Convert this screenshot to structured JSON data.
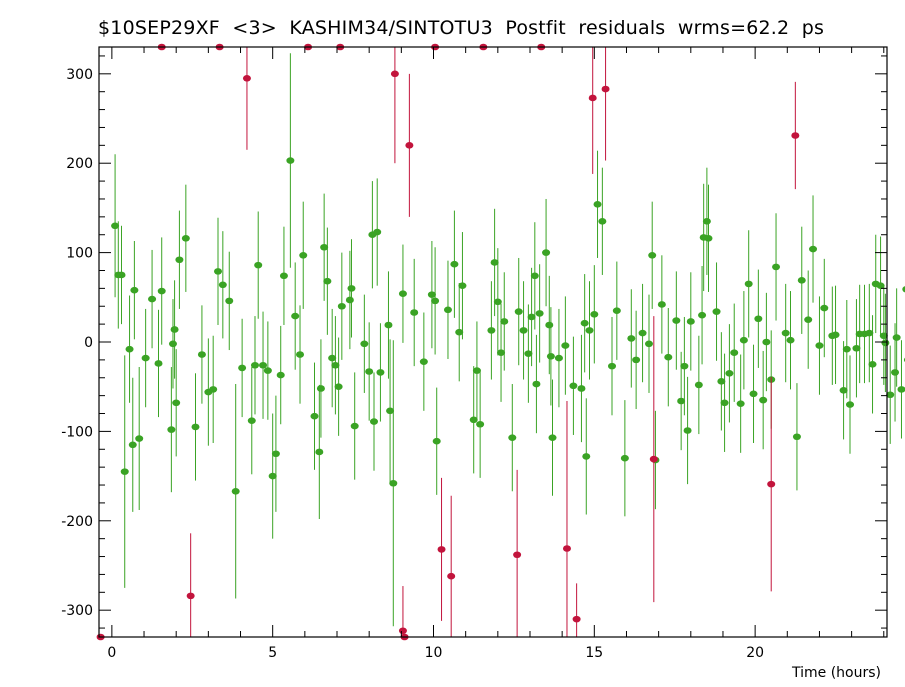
{
  "chart_data": {
    "type": "scatter",
    "title": "$10SEP29XF  <3>  KASHIM34/SINTOTU3  Postfit  residuals  wrms=62.2  ps",
    "xlabel": "Time (hours)",
    "ylabel": "",
    "xlim": [
      -0.4,
      24.1
    ],
    "ylim": [
      -330,
      330
    ],
    "xticks": [
      0,
      5,
      10,
      15,
      20
    ],
    "yticks": [
      -300,
      -200,
      -100,
      0,
      100,
      200,
      300
    ],
    "grid": false,
    "legend": "none",
    "colors": {
      "good": "#3aa324",
      "outlier": "#c2143c"
    },
    "series": [
      {
        "name": "",
        "color": "#3aa324",
        "points": [
          [
            0.1,
            130,
            80
          ],
          [
            0.2,
            75,
            60
          ],
          [
            0.3,
            75,
            55
          ],
          [
            0.4,
            -145,
            130
          ],
          [
            0.55,
            -8,
            60
          ],
          [
            0.65,
            -115,
            75
          ],
          [
            0.7,
            58,
            55
          ],
          [
            0.85,
            -108,
            80
          ],
          [
            1.05,
            -18,
            55
          ],
          [
            1.25,
            48,
            55
          ],
          [
            1.45,
            -24,
            60
          ],
          [
            1.55,
            57,
            60
          ],
          [
            1.85,
            -98,
            70
          ],
          [
            1.9,
            -2,
            50
          ],
          [
            1.95,
            14,
            55
          ],
          [
            2.0,
            -68,
            60
          ],
          [
            2.1,
            92,
            55
          ],
          [
            2.3,
            116,
            60
          ],
          [
            2.6,
            -95,
            60
          ],
          [
            2.8,
            -14,
            55
          ],
          [
            3.0,
            -56,
            60
          ],
          [
            3.15,
            -53,
            60
          ],
          [
            3.3,
            79,
            60
          ],
          [
            3.45,
            64,
            60
          ],
          [
            3.65,
            46,
            55
          ],
          [
            3.85,
            -167,
            120
          ],
          [
            4.05,
            -29,
            55
          ],
          [
            4.35,
            -88,
            60
          ],
          [
            4.45,
            -26,
            55
          ],
          [
            4.55,
            86,
            60
          ],
          [
            4.7,
            -26,
            60
          ],
          [
            4.85,
            -32,
            55
          ],
          [
            5.0,
            -150,
            70
          ],
          [
            5.1,
            -125,
            65
          ],
          [
            5.25,
            -37,
            55
          ],
          [
            5.35,
            74,
            55
          ],
          [
            5.55,
            203,
            120
          ],
          [
            5.7,
            29,
            60
          ],
          [
            5.85,
            -14,
            55
          ],
          [
            5.95,
            97,
            60
          ],
          [
            6.3,
            -83,
            60
          ],
          [
            6.45,
            -123,
            75
          ],
          [
            6.5,
            -52,
            55
          ],
          [
            6.6,
            106,
            60
          ],
          [
            6.7,
            68,
            60
          ],
          [
            6.85,
            -18,
            55
          ],
          [
            6.95,
            -26,
            55
          ],
          [
            7.05,
            -50,
            55
          ],
          [
            7.15,
            40,
            60
          ],
          [
            7.4,
            47,
            55
          ],
          [
            7.45,
            60,
            55
          ],
          [
            7.55,
            -94,
            60
          ],
          [
            7.85,
            -2,
            55
          ],
          [
            8.0,
            -33,
            55
          ],
          [
            8.1,
            120,
            60
          ],
          [
            8.15,
            -89,
            55
          ],
          [
            8.25,
            123,
            60
          ],
          [
            8.35,
            -34,
            55
          ],
          [
            8.6,
            19,
            60
          ],
          [
            8.65,
            -77,
            80
          ],
          [
            8.75,
            -158,
            160
          ],
          [
            9.05,
            54,
            55
          ],
          [
            9.4,
            33,
            60
          ],
          [
            9.7,
            -22,
            55
          ],
          [
            9.95,
            53,
            60
          ],
          [
            10.05,
            46,
            60
          ],
          [
            10.1,
            -111,
            60
          ],
          [
            10.45,
            36,
            55
          ],
          [
            10.65,
            87,
            60
          ],
          [
            10.8,
            11,
            55
          ],
          [
            10.9,
            63,
            60
          ],
          [
            11.25,
            -87,
            60
          ],
          [
            11.35,
            -32,
            55
          ],
          [
            11.45,
            -92,
            60
          ],
          [
            11.8,
            13,
            55
          ],
          [
            11.9,
            89,
            60
          ],
          [
            12.0,
            45,
            60
          ],
          [
            12.1,
            -12,
            55
          ],
          [
            12.2,
            23,
            55
          ],
          [
            12.45,
            -107,
            60
          ],
          [
            12.65,
            34,
            60
          ],
          [
            12.8,
            13,
            55
          ],
          [
            12.95,
            -13,
            55
          ],
          [
            13.05,
            28,
            55
          ],
          [
            13.15,
            74,
            60
          ],
          [
            13.2,
            -47,
            55
          ],
          [
            13.3,
            32,
            55
          ],
          [
            13.5,
            100,
            60
          ],
          [
            13.6,
            19,
            55
          ],
          [
            13.65,
            -16,
            55
          ],
          [
            13.7,
            -107,
            65
          ],
          [
            13.9,
            -18,
            55
          ],
          [
            14.1,
            -4,
            55
          ],
          [
            14.35,
            -49,
            55
          ],
          [
            14.6,
            -52,
            60
          ],
          [
            14.7,
            21,
            55
          ],
          [
            14.75,
            -128,
            65
          ],
          [
            14.85,
            13,
            55
          ],
          [
            15.0,
            31,
            55
          ],
          [
            15.1,
            154,
            60
          ],
          [
            15.25,
            135,
            60
          ],
          [
            15.55,
            -27,
            55
          ],
          [
            15.7,
            35,
            55
          ],
          [
            15.95,
            -130,
            65
          ],
          [
            16.15,
            4,
            55
          ],
          [
            16.3,
            -20,
            55
          ],
          [
            16.5,
            10,
            55
          ],
          [
            16.7,
            -2,
            55
          ],
          [
            16.8,
            97,
            60
          ],
          [
            16.9,
            -132,
            55
          ],
          [
            17.1,
            42,
            55
          ],
          [
            17.3,
            -17,
            55
          ],
          [
            17.55,
            24,
            55
          ],
          [
            17.7,
            -66,
            55
          ],
          [
            17.8,
            -27,
            55
          ],
          [
            17.9,
            -99,
            60
          ],
          [
            18.0,
            23,
            55
          ],
          [
            18.25,
            -48,
            55
          ],
          [
            18.35,
            30,
            55
          ],
          [
            18.4,
            117,
            60
          ],
          [
            18.5,
            135,
            60
          ],
          [
            18.55,
            116,
            60
          ],
          [
            18.8,
            34,
            55
          ],
          [
            18.95,
            -44,
            55
          ],
          [
            19.05,
            -68,
            55
          ],
          [
            19.2,
            -35,
            55
          ],
          [
            19.35,
            -12,
            55
          ],
          [
            19.55,
            -69,
            55
          ],
          [
            19.65,
            2,
            55
          ],
          [
            19.8,
            65,
            60
          ],
          [
            19.95,
            -58,
            55
          ],
          [
            20.1,
            26,
            55
          ],
          [
            20.25,
            -65,
            55
          ],
          [
            20.35,
            0,
            55
          ],
          [
            20.5,
            -42,
            55
          ],
          [
            20.65,
            84,
            60
          ],
          [
            20.95,
            10,
            55
          ],
          [
            21.1,
            2,
            55
          ],
          [
            21.3,
            -106,
            60
          ],
          [
            21.45,
            69,
            60
          ],
          [
            21.65,
            25,
            55
          ],
          [
            21.8,
            104,
            60
          ],
          [
            22.0,
            -4,
            55
          ],
          [
            22.15,
            38,
            55
          ],
          [
            22.4,
            7,
            55
          ],
          [
            22.5,
            8,
            55
          ],
          [
            22.75,
            -54,
            55
          ],
          [
            22.85,
            -8,
            55
          ],
          [
            22.95,
            -70,
            55
          ],
          [
            23.15,
            -7,
            55
          ],
          [
            23.25,
            9,
            55
          ],
          [
            23.4,
            9,
            55
          ],
          [
            23.55,
            10,
            55
          ],
          [
            23.65,
            -25,
            55
          ],
          [
            23.75,
            65,
            55
          ],
          [
            23.9,
            63,
            55
          ],
          [
            24.0,
            7,
            55
          ],
          [
            24.05,
            -1,
            55
          ],
          [
            24.2,
            -59,
            55
          ],
          [
            24.35,
            -34,
            55
          ],
          [
            24.4,
            5,
            55
          ],
          [
            24.55,
            -53,
            55
          ],
          [
            24.7,
            59,
            55
          ],
          [
            24.75,
            -20,
            55
          ],
          [
            24.8,
            53,
            55
          ]
        ]
      },
      {
        "name": "",
        "color": "#c2143c",
        "points": [
          [
            -0.35,
            -330,
            0
          ],
          [
            1.55,
            330,
            0
          ],
          [
            2.45,
            -284,
            70
          ],
          [
            3.35,
            330,
            0
          ],
          [
            4.2,
            295,
            80
          ],
          [
            6.1,
            330,
            0
          ],
          [
            7.1,
            330,
            0
          ],
          [
            8.8,
            300,
            100
          ],
          [
            9.05,
            -323,
            50
          ],
          [
            9.1,
            -332,
            0
          ],
          [
            9.25,
            220,
            80
          ],
          [
            10.05,
            330,
            0
          ],
          [
            10.25,
            -232,
            80
          ],
          [
            10.55,
            -262,
            90
          ],
          [
            11.55,
            330,
            0
          ],
          [
            12.6,
            -238,
            95
          ],
          [
            13.35,
            330,
            0
          ],
          [
            14.15,
            -231,
            165
          ],
          [
            14.45,
            -310,
            40
          ],
          [
            14.95,
            273,
            85
          ],
          [
            15.35,
            283,
            80
          ],
          [
            16.85,
            -131,
            160
          ],
          [
            20.5,
            -159,
            120
          ],
          [
            21.25,
            231,
            60
          ]
        ]
      }
    ]
  }
}
